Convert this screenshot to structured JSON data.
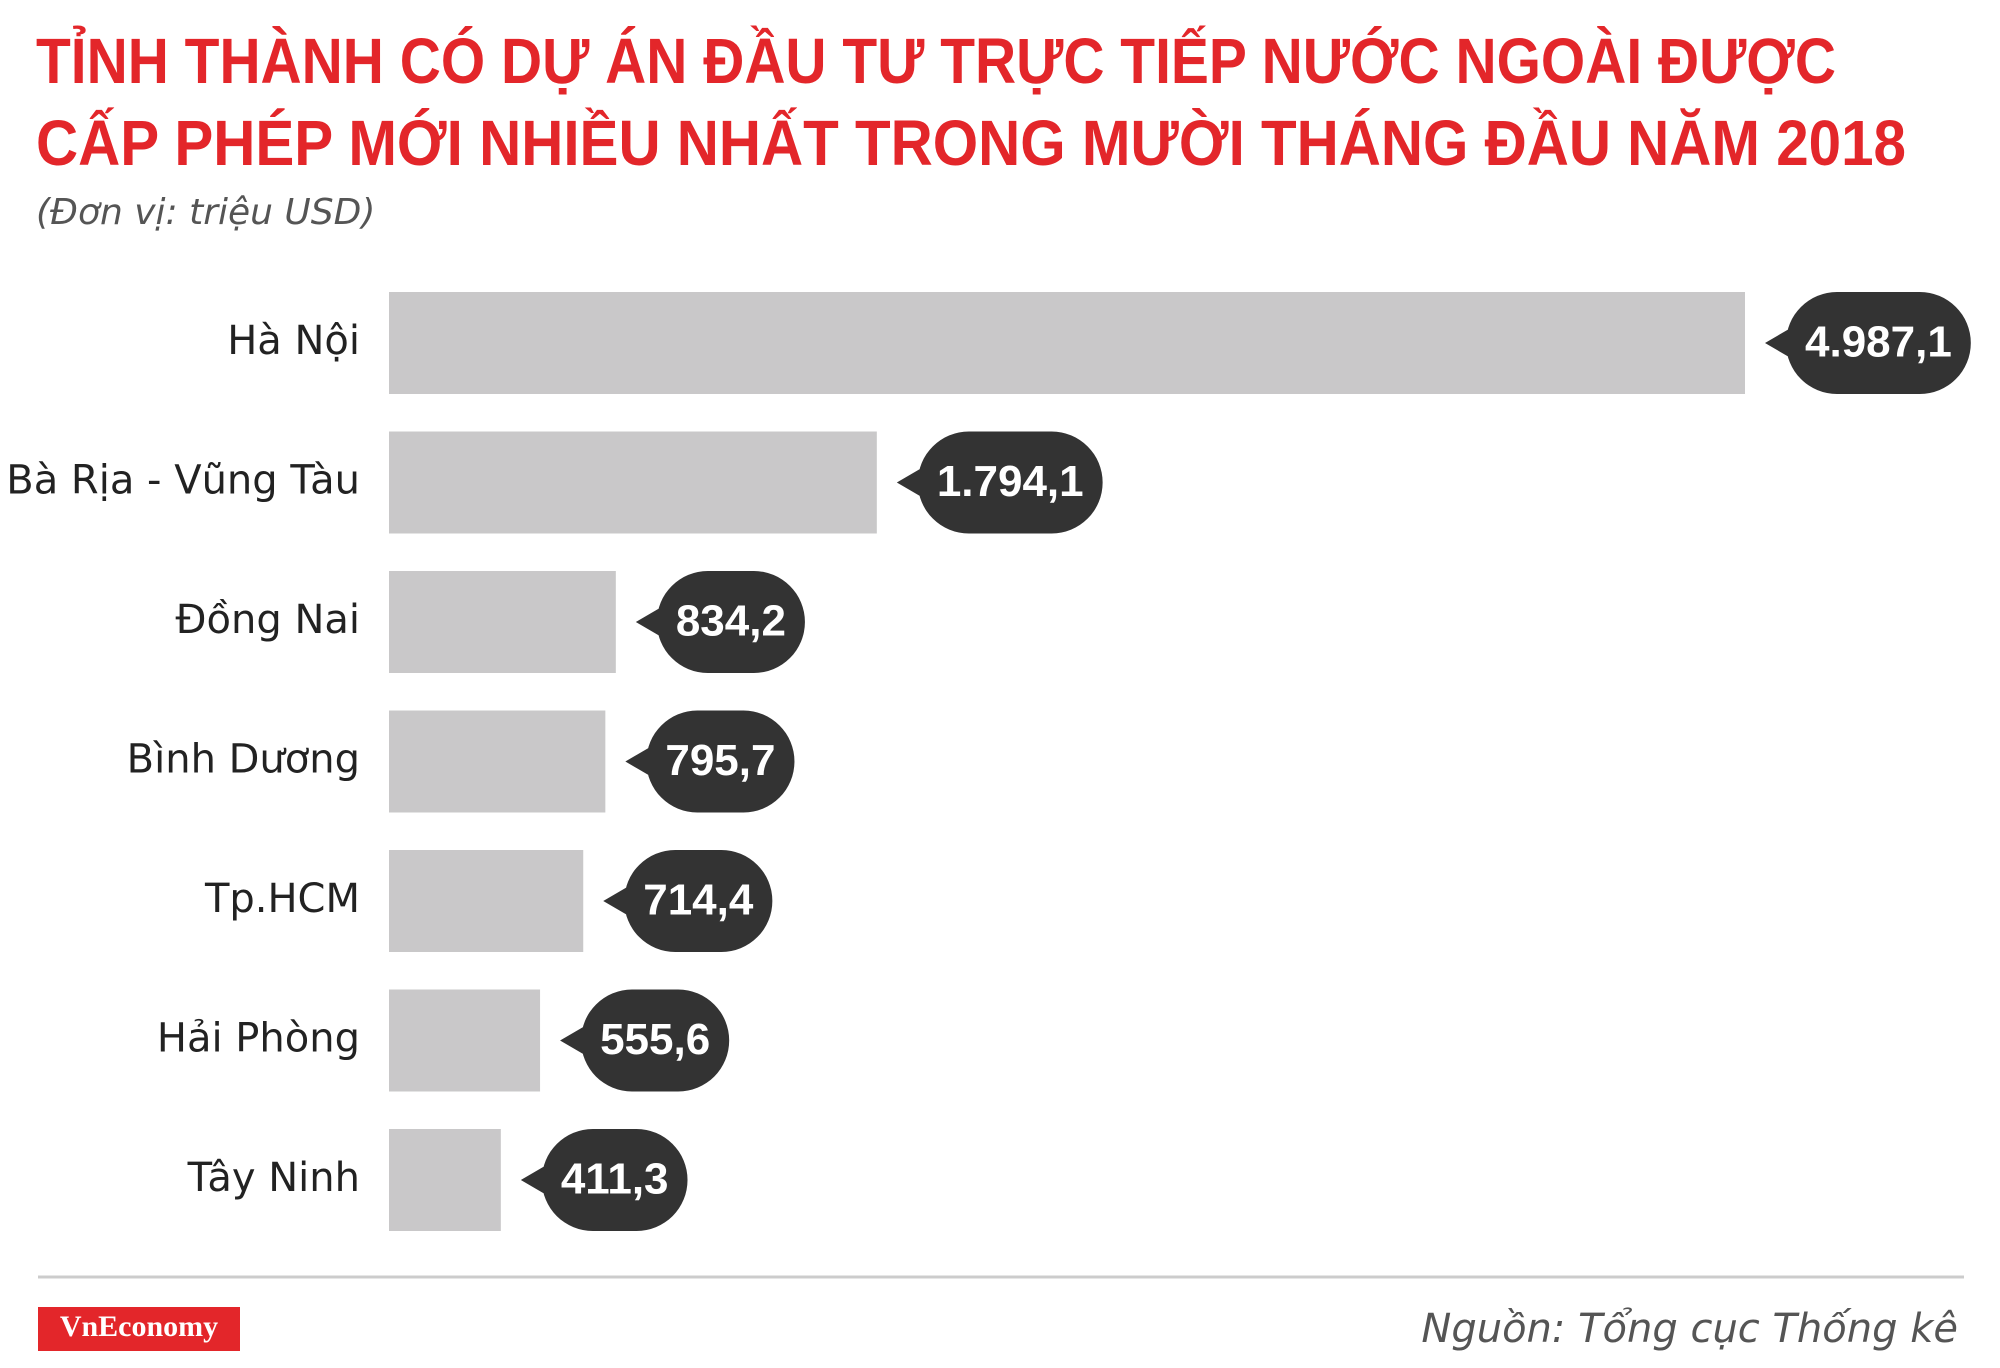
{
  "chart_data": {
    "type": "hbar",
    "title": [
      "TỈNH THÀNH CÓ DỰ ÁN ĐẦU TƯ TRỰC TIẾP NƯỚC NGOÀI ĐƯỢC",
      "CẤP PHÉP MỚI NHIỀU NHẤT TRONG MƯỜI THÁNG ĐẦU NĂM 2018"
    ],
    "subtitle": "(Đơn vị: triệu USD)",
    "categories": [
      "Hà Nội",
      "Bà Rịa - Vũng Tàu",
      "Đồng Nai",
      "Bình Dương",
      "Tp.HCM",
      "Hải Phòng",
      "Tây Ninh"
    ],
    "values": [
      4987.1,
      1794.1,
      834.2,
      795.7,
      714.4,
      555.6,
      411.3
    ],
    "value_labels": [
      "4.987,1",
      "1.794,1",
      "834,2",
      "795,7",
      "714,4",
      "555,6",
      "411,3"
    ],
    "color": "#c9c8c9",
    "label_color": "#333333"
  },
  "footer": {
    "logo": "VnEconomy",
    "source": "Nguồn: Tổng cục Thống kê"
  }
}
